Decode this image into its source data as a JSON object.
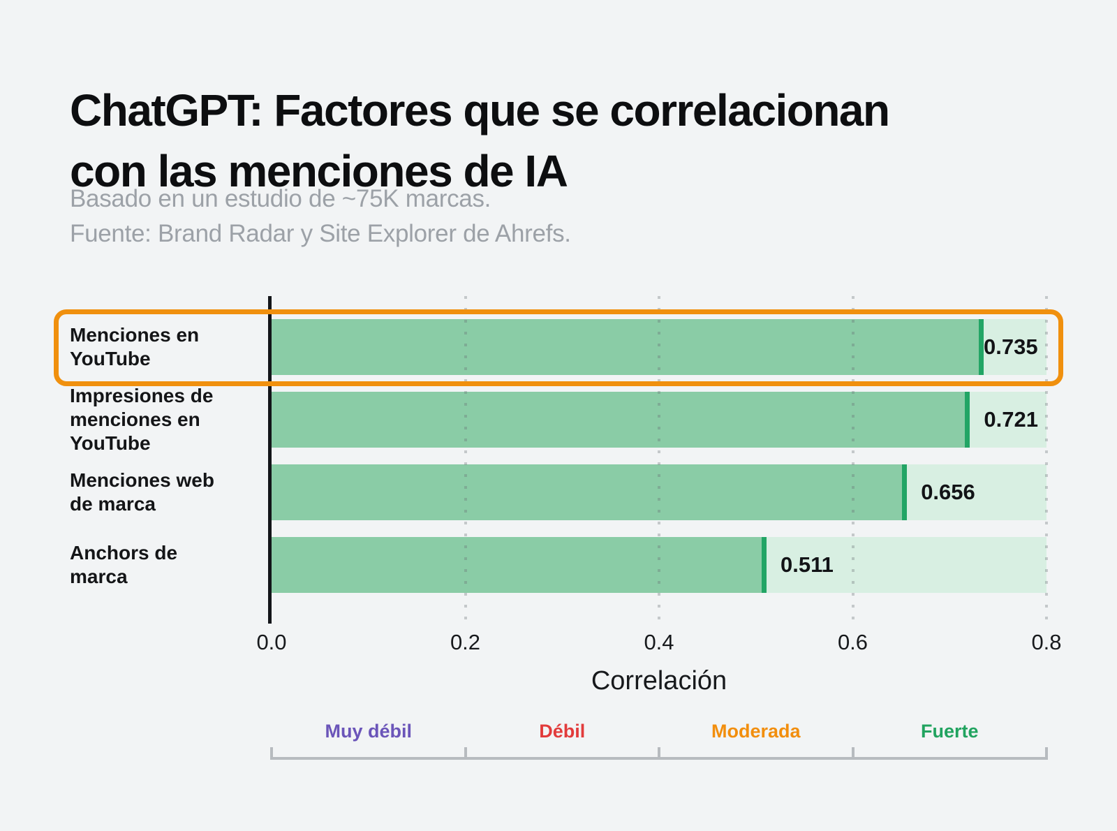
{
  "page": {
    "background": "#F2F4F5"
  },
  "header": {
    "title_lines": [
      "ChatGPT: Factores que se correlacionan",
      "con las menciones de IA"
    ],
    "subtitle_lines": [
      "Basado en un estudio de ~75K marcas.",
      "Fuente: Brand Radar y Site Explorer de Ahrefs."
    ],
    "title_color": "#0D0E10",
    "subtitle_color": "#9CA1A7"
  },
  "chart_data": {
    "type": "bar",
    "orientation": "horizontal",
    "title": "ChatGPT: Factores que se correlacionan con las menciones de IA",
    "subtitle": "Basado en un estudio de ~75K marcas. Fuente: Brand Radar y Site Explorer de Ahrefs.",
    "xlabel": "Correlación",
    "xlim": [
      0,
      0.8
    ],
    "x_ticks": [
      0,
      0.2,
      0.4,
      0.6,
      0.8
    ],
    "x_tick_labels": [
      "0.0",
      "0.2",
      "0.4",
      "0.6",
      "0.8"
    ],
    "grid": "dotted-vertical",
    "legend_position": "bottom",
    "categories": [
      "Menciones en YouTube",
      "Impresiones de menciones en YouTube",
      "Menciones web de marca",
      "Anchors de marca"
    ],
    "category_label_lines": [
      [
        "Menciones en",
        "YouTube"
      ],
      [
        "Impresiones de",
        "menciones en",
        "YouTube"
      ],
      [
        "Menciones web",
        "de marca"
      ],
      [
        "Anchors de",
        "marca"
      ]
    ],
    "values": [
      0.735,
      0.721,
      0.656,
      0.511
    ],
    "value_labels": [
      "0.735",
      "0.721",
      "0.656",
      "0.511"
    ],
    "highlight": {
      "category_index": 0,
      "ring_color": "#F0900E"
    },
    "colors": {
      "bar_fill": "#8ACCA6",
      "bar_cap": "#22A565",
      "bar_track": "#D8EFE2",
      "axis_line": "#131519",
      "tick_text": "#17191C",
      "value_text": "#121316",
      "category_text": "#141517",
      "grid_dot": "rgba(100,106,112,0.32)"
    },
    "strength_scale": {
      "line_color": "#B7BBBF",
      "segments": [
        {
          "label": "Muy débil",
          "color": "#6B55B9"
        },
        {
          "label": "Débil",
          "color": "#E23B3B"
        },
        {
          "label": "Moderada",
          "color": "#F28E0D"
        },
        {
          "label": "Fuerte",
          "color": "#21A35F"
        }
      ]
    }
  }
}
